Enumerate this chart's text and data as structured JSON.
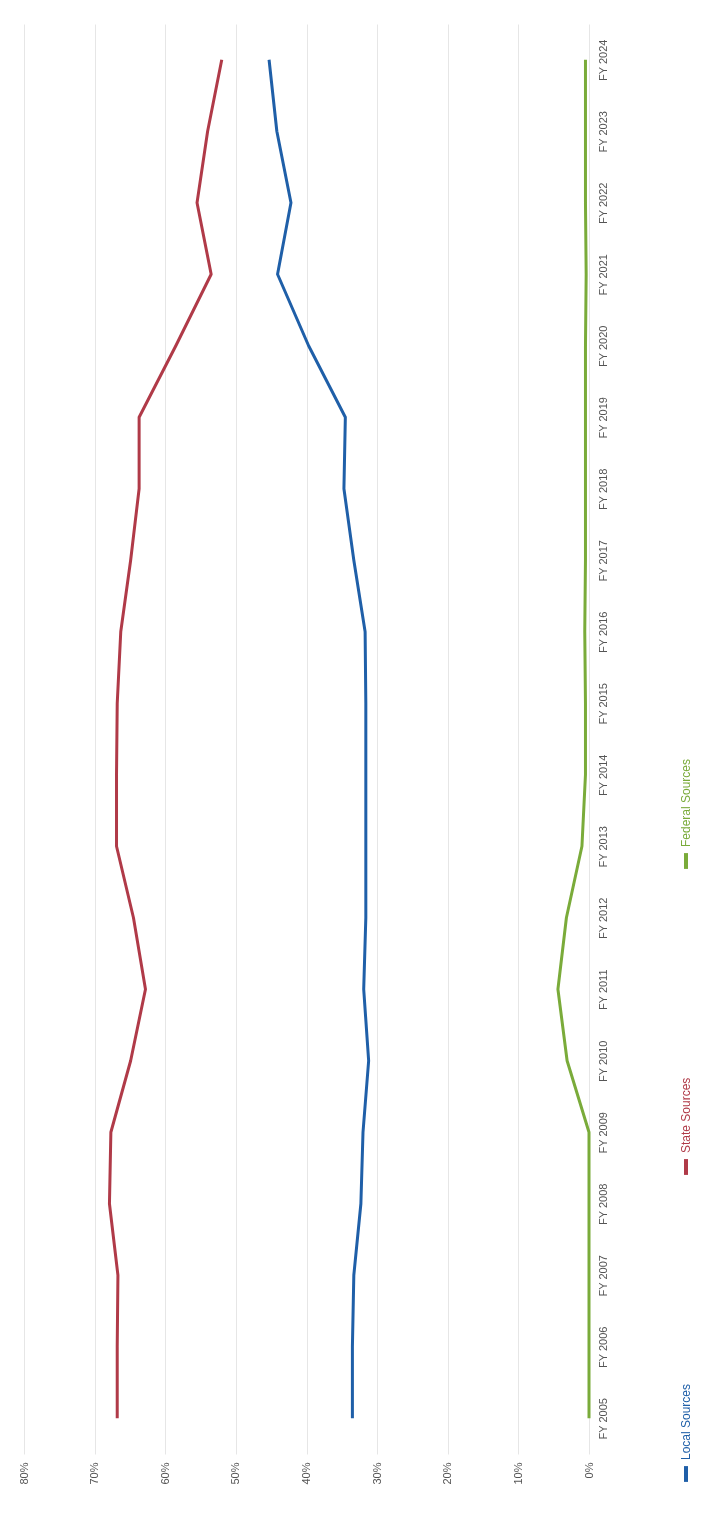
{
  "chart_data": {
    "type": "line",
    "orientation": "horizontal",
    "categories": [
      "FY 2024",
      "FY 2023",
      "FY 2022",
      "FY 2021",
      "FY 2020",
      "FY 2019",
      "FY 2018",
      "FY 2017",
      "FY 2016",
      "FY 2015",
      "FY 2014",
      "FY 2013",
      "FY 2012",
      "FY 2011",
      "FY 2010",
      "FY 2009",
      "FY 2008",
      "FY 2007",
      "FY 2006",
      "FY 2005"
    ],
    "series": [
      {
        "name": "Local Sources",
        "color": "#1f5fa8",
        "values": [
          45.3,
          44.2,
          42.2,
          44.1,
          39.7,
          34.5,
          34.7,
          33.3,
          31.7,
          31.6,
          31.6,
          31.6,
          31.6,
          31.9,
          31.2,
          32.0,
          32.3,
          33.3,
          33.5,
          33.5
        ]
      },
      {
        "name": "State Sources",
        "color": "#b03a48",
        "values": [
          52.0,
          54.0,
          55.5,
          53.5,
          58.5,
          63.7,
          63.7,
          64.9,
          66.3,
          66.8,
          66.9,
          66.9,
          64.5,
          62.8,
          64.9,
          67.7,
          67.9,
          66.7,
          66.8,
          66.8
        ]
      },
      {
        "name": "Federal Sources",
        "color": "#7aab3a",
        "values": [
          0.5,
          0.5,
          0.5,
          0.4,
          0.5,
          0.5,
          0.5,
          0.5,
          0.6,
          0.5,
          0.5,
          1.0,
          3.2,
          4.4,
          3.1,
          0,
          0,
          0,
          0,
          0
        ]
      }
    ],
    "xlim": [
      80,
      0
    ],
    "xticks": [
      {
        "value": 80,
        "label": "80%"
      },
      {
        "value": 70,
        "label": "70%"
      },
      {
        "value": 60,
        "label": "60%"
      },
      {
        "value": 50,
        "label": "50%"
      },
      {
        "value": 40,
        "label": "40%"
      },
      {
        "value": 30,
        "label": "30%"
      },
      {
        "value": 20,
        "label": "20%"
      },
      {
        "value": 10,
        "label": "10%"
      },
      {
        "value": 0,
        "label": "0%"
      }
    ],
    "grid": "x",
    "legend": "right",
    "marker": "none",
    "line_style": "solid"
  }
}
